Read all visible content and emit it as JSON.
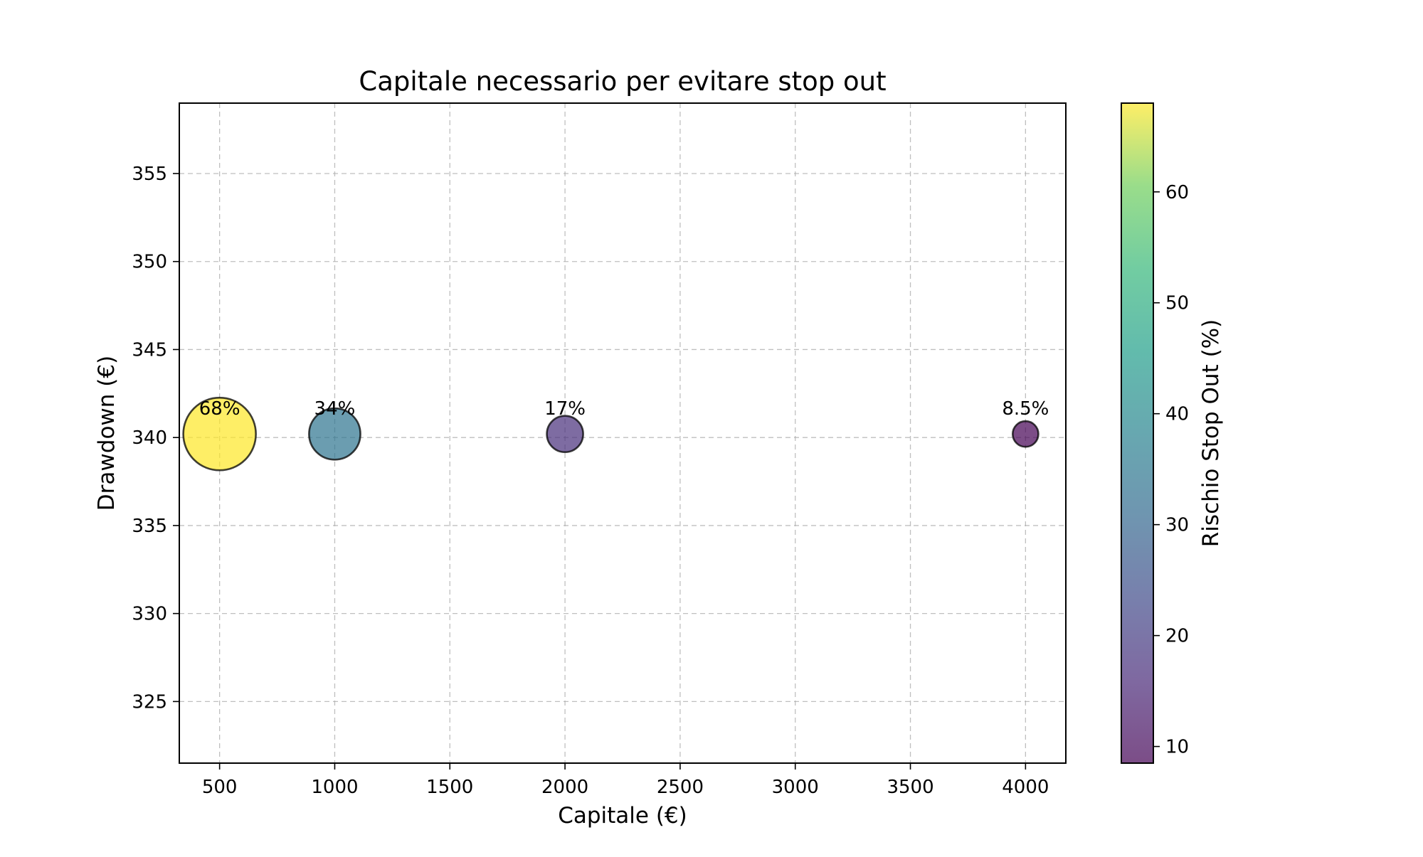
{
  "chart_data": {
    "type": "scatter",
    "title": "Capitale necessario per evitare stop out",
    "xlabel": "Capitale (€)",
    "ylabel": "Drawdown (€)",
    "xlim": [
      325,
      4175
    ],
    "ylim": [
      321.5,
      359
    ],
    "x_ticks": [
      500,
      1000,
      1500,
      2000,
      2500,
      3000,
      3500,
      4000
    ],
    "y_ticks": [
      325,
      330,
      335,
      340,
      345,
      350,
      355
    ],
    "grid": true,
    "points": [
      {
        "x": 500,
        "y": 340.2,
        "risk": 68,
        "label": "68%"
      },
      {
        "x": 1000,
        "y": 340.2,
        "risk": 34,
        "label": "34%"
      },
      {
        "x": 2000,
        "y": 340.2,
        "risk": 17,
        "label": "17%"
      },
      {
        "x": 4000,
        "y": 340.2,
        "risk": 8.5,
        "label": "8.5%"
      }
    ],
    "colorbar": {
      "label": "Rischio Stop Out (%)",
      "range": [
        8.5,
        68
      ],
      "ticks": [
        10,
        20,
        30,
        40,
        50,
        60
      ],
      "colormap": "viridis"
    }
  }
}
